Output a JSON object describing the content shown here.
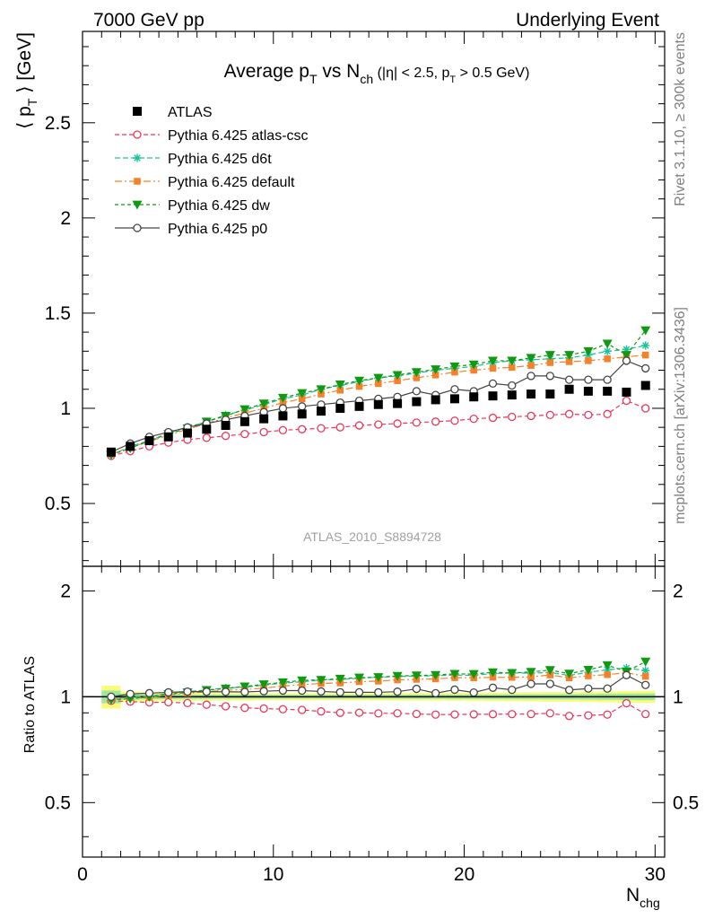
{
  "header": {
    "left": "7000 GeV pp",
    "right": "Underlying Event"
  },
  "side": {
    "rivet": "Rivet 3.1.10, ≥ 300k events",
    "mcplots": "mcplots.cern.ch [arXiv:1306.3436]"
  },
  "chart_data": {
    "type": "scatter",
    "title_parts": {
      "a": "Average p",
      "a_sub": "T",
      "b": " vs N",
      "b_sub": "ch",
      "c": " (|η| < 2.5, p",
      "c_sub": "T",
      "d": " > 0.5 GeV)"
    },
    "ylabel_parts": {
      "a": "⟨ p",
      "sub": "T",
      "b": " ⟩ [GeV]"
    },
    "xlabel_parts": {
      "main": "N",
      "sub": "chg"
    },
    "ratio_ylabel": "Ratio to ATLAS",
    "watermark": "ATLAS_2010_S8894728",
    "xlim": [
      0,
      30.5
    ],
    "ylim": [
      0.17,
      2.98
    ],
    "ratio_ylim": [
      0.35,
      2.35
    ],
    "x_ticks": [
      "0",
      "10",
      "20",
      "30"
    ],
    "x_tick_values": [
      0,
      10,
      20,
      30
    ],
    "y_ticks": [
      "0.5",
      "1",
      "1.5",
      "2",
      "2.5"
    ],
    "y_tick_values": [
      0.5,
      1,
      1.5,
      2,
      2.5
    ],
    "ratio_ticks": [
      "0.5",
      "1",
      "2"
    ],
    "ratio_tick_values": [
      0.5,
      1,
      2
    ],
    "legend_position": "top-left",
    "x": [
      1.5,
      2.5,
      3.5,
      4.5,
      5.5,
      6.5,
      7.5,
      8.5,
      9.5,
      10.5,
      11.5,
      12.5,
      13.5,
      14.5,
      15.5,
      16.5,
      17.5,
      18.5,
      19.5,
      20.5,
      21.5,
      22.5,
      23.5,
      24.5,
      25.5,
      26.5,
      27.5,
      28.5,
      29.5
    ],
    "band_half_width": [
      0.075,
      0.035,
      0.03,
      0.028,
      0.026,
      0.025,
      0.024,
      0.024,
      0.023,
      0.023,
      0.023,
      0.023,
      0.023,
      0.023,
      0.024,
      0.024,
      0.025,
      0.025,
      0.026,
      0.027,
      0.028,
      0.029,
      0.03,
      0.031,
      0.032,
      0.034,
      0.036,
      0.038,
      0.04
    ],
    "band_color_outer": "#fbfb7a",
    "band_color_inner": "#9ee89e",
    "series": [
      {
        "name": "ATLAS",
        "style": "data",
        "color": "#000000",
        "marker": "square",
        "values": [
          0.77,
          0.8,
          0.83,
          0.85,
          0.87,
          0.89,
          0.91,
          0.93,
          0.945,
          0.96,
          0.97,
          0.985,
          1.0,
          1.01,
          1.02,
          1.025,
          1.035,
          1.045,
          1.05,
          1.06,
          1.065,
          1.07,
          1.075,
          1.075,
          1.1,
          1.09,
          1.09,
          1.085,
          1.12
        ]
      },
      {
        "name": "Pythia 6.425 atlas-csc",
        "color": "#e8385a",
        "marker": "circle-open",
        "dash": "5,3",
        "values": [
          0.75,
          0.775,
          0.8,
          0.82,
          0.835,
          0.845,
          0.855,
          0.865,
          0.875,
          0.885,
          0.89,
          0.895,
          0.9,
          0.91,
          0.915,
          0.92,
          0.925,
          0.93,
          0.935,
          0.945,
          0.95,
          0.955,
          0.96,
          0.965,
          0.97,
          0.965,
          0.97,
          1.04,
          1.0
        ]
      },
      {
        "name": "Pythia 6.425 d6t",
        "color": "#19c39a",
        "marker": "asterisk",
        "dash": "6,3",
        "values": [
          0.755,
          0.8,
          0.83,
          0.87,
          0.9,
          0.93,
          0.965,
          0.99,
          1.02,
          1.05,
          1.07,
          1.1,
          1.12,
          1.14,
          1.16,
          1.17,
          1.185,
          1.2,
          1.21,
          1.22,
          1.24,
          1.25,
          1.255,
          1.26,
          1.265,
          1.28,
          1.3,
          1.31,
          1.33
        ]
      },
      {
        "name": "Pythia 6.425 default",
        "color": "#f5822a",
        "marker": "square-small",
        "dash": "8,3,2,3",
        "values": [
          0.76,
          0.795,
          0.825,
          0.86,
          0.89,
          0.92,
          0.95,
          0.975,
          1.0,
          1.03,
          1.05,
          1.075,
          1.095,
          1.115,
          1.13,
          1.145,
          1.16,
          1.175,
          1.19,
          1.2,
          1.21,
          1.215,
          1.225,
          1.24,
          1.245,
          1.25,
          1.26,
          1.27,
          1.28
        ]
      },
      {
        "name": "Pythia 6.425 dw",
        "color": "#119911",
        "marker": "triangle-down",
        "dash": "4,3",
        "values": [
          0.755,
          0.79,
          0.83,
          0.865,
          0.895,
          0.93,
          0.96,
          0.995,
          1.025,
          1.055,
          1.08,
          1.1,
          1.125,
          1.145,
          1.16,
          1.175,
          1.19,
          1.205,
          1.22,
          1.23,
          1.25,
          1.25,
          1.265,
          1.28,
          1.28,
          1.3,
          1.34,
          1.28,
          1.41
        ]
      },
      {
        "name": "Pythia 6.425 p0",
        "color": "#454545",
        "marker": "circle-open",
        "dash": "",
        "values": [
          0.77,
          0.815,
          0.85,
          0.875,
          0.9,
          0.92,
          0.94,
          0.96,
          0.98,
          1.0,
          1.01,
          1.02,
          1.03,
          1.04,
          1.05,
          1.06,
          1.09,
          1.07,
          1.1,
          1.09,
          1.13,
          1.12,
          1.17,
          1.17,
          1.15,
          1.15,
          1.15,
          1.25,
          1.21
        ]
      }
    ]
  }
}
